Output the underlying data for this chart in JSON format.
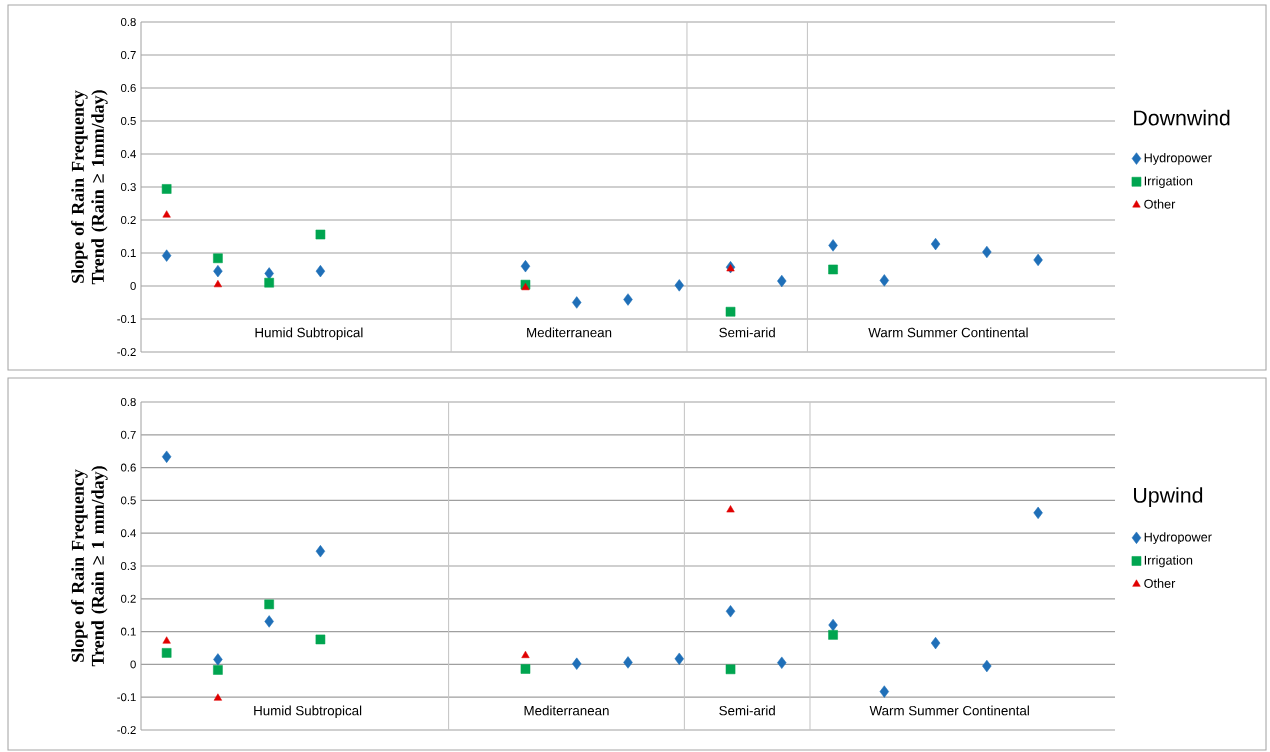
{
  "chart_data": [
    {
      "type": "scatter",
      "legend_title": "Downwind",
      "ylabel": "Slope of Rain Frequency Trend (Rain ≥ 1mm/day)",
      "categories": [
        null,
        null,
        null,
        null,
        null,
        null,
        null,
        null,
        null,
        null,
        null,
        null,
        null,
        null,
        null,
        null,
        null,
        null,
        null
      ],
      "series": [
        {
          "name": "Hydropower",
          "color": "#1f6fb8",
          "marker": "diamond",
          "values": [
            0.092,
            0.045,
            0.038,
            0.045,
            null,
            null,
            null,
            0.06,
            -0.05,
            -0.041,
            0.002,
            0.057,
            0.015,
            0.123,
            0.017,
            0.127,
            0.103,
            0.079,
            null
          ]
        },
        {
          "name": "Irrigation",
          "color": "#00a550",
          "marker": "square",
          "values": [
            0.294,
            0.084,
            0.01,
            0.156,
            null,
            null,
            null,
            0.004,
            null,
            null,
            null,
            -0.078,
            null,
            0.05,
            null,
            null,
            null,
            null,
            null
          ]
        },
        {
          "name": "Other",
          "color": "#e00000",
          "marker": "triangle",
          "values": [
            0.215,
            0.004,
            null,
            null,
            null,
            null,
            null,
            -0.005,
            null,
            null,
            null,
            0.052,
            null,
            null,
            null,
            null,
            null,
            null,
            null
          ]
        }
      ],
      "ylim": [
        -0.2,
        0.8
      ],
      "yticks": [
        -0.2,
        -0.1,
        0,
        0.1,
        0.2,
        0.3,
        0.4,
        0.5,
        0.6,
        0.7,
        0.8
      ],
      "grid": "y",
      "legend": "right",
      "tick_labels": "y",
      "annotations": [
        "Humid Subtropical",
        "Mediterranean",
        "Semi-arid",
        "Warm Summer Continental"
      ]
    },
    {
      "type": "scatter",
      "legend_title": "Upwind",
      "ylabel": "Slope of Rain Frequency Trend (Rain ≥ 1 mm/day)",
      "categories": [
        null,
        null,
        null,
        null,
        null,
        null,
        null,
        null,
        null,
        null,
        null,
        null,
        null,
        null,
        null,
        null,
        null,
        null,
        null
      ],
      "series": [
        {
          "name": "Hydropower",
          "color": "#1f6fb8",
          "marker": "diamond",
          "values": [
            0.633,
            0.015,
            0.131,
            0.345,
            null,
            null,
            null,
            null,
            0.002,
            0.006,
            0.017,
            0.162,
            0.005,
            0.12,
            -0.083,
            0.065,
            -0.005,
            0.462,
            null
          ]
        },
        {
          "name": "Irrigation",
          "color": "#00a550",
          "marker": "square",
          "values": [
            0.035,
            -0.017,
            0.183,
            0.076,
            null,
            null,
            null,
            -0.014,
            null,
            null,
            null,
            -0.015,
            null,
            0.09,
            null,
            null,
            null,
            null,
            null
          ]
        },
        {
          "name": "Other",
          "color": "#e00000",
          "marker": "triangle",
          "values": [
            0.071,
            -0.103,
            null,
            null,
            null,
            null,
            null,
            0.027,
            null,
            null,
            null,
            0.471,
            null,
            null,
            null,
            null,
            null,
            null,
            null
          ]
        }
      ],
      "ylim": [
        -0.2,
        0.8
      ],
      "yticks": [
        -0.2,
        -0.1,
        0,
        0.1,
        0.2,
        0.3,
        0.4,
        0.5,
        0.6,
        0.7,
        0.8
      ],
      "grid": "y",
      "legend": "right",
      "tick_labels": "y",
      "annotations": [
        "Humid Subtropical",
        "Mediterranean",
        "Semi-arid",
        "Warm Summer Continental"
      ]
    }
  ]
}
